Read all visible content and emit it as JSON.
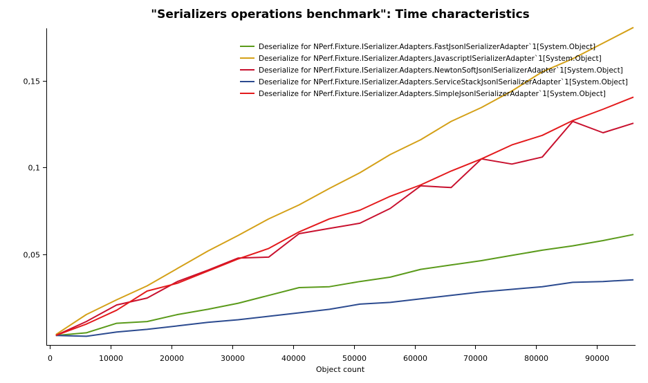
{
  "chart_data": {
    "type": "line",
    "title": "\"Serializers operations benchmark\": Time characteristics",
    "xlabel": "Object count",
    "ylabel": "",
    "xlim": [
      0,
      96000
    ],
    "ylim": [
      0,
      0.18
    ],
    "x_ticks": [
      0,
      10000,
      20000,
      30000,
      40000,
      50000,
      60000,
      70000,
      80000,
      90000
    ],
    "x_tick_labels": [
      "0",
      "10000",
      "20000",
      "30000",
      "40000",
      "50000",
      "60000",
      "70000",
      "80000",
      "90000"
    ],
    "y_ticks": [
      0.05,
      0.1,
      0.15
    ],
    "y_tick_labels": [
      "0,05",
      "0,1",
      "0,15"
    ],
    "x": [
      1000,
      6000,
      11000,
      16000,
      21000,
      26000,
      31000,
      36000,
      41000,
      46000,
      51000,
      56000,
      61000,
      66000,
      71000,
      76000,
      81000,
      86000,
      91000,
      96000
    ],
    "legend_position": "top-right",
    "series": [
      {
        "name": "Deserialize for NPerf.Fixture.ISerializer.Adapters.FastJsonISerializerAdapter`1[System.Object]",
        "color": "#5a9a1a",
        "values": [
          0.0035,
          0.005,
          0.0105,
          0.0115,
          0.0155,
          0.0185,
          0.022,
          0.0265,
          0.031,
          0.0315,
          0.0345,
          0.037,
          0.0415,
          0.044,
          0.0465,
          0.0495,
          0.0525,
          0.055,
          0.058,
          0.0615
        ]
      },
      {
        "name": "Deserialize for NPerf.Fixture.ISerializer.Adapters.JavascriptISerializerAdapter`1[System.Object]",
        "color": "#d4a017",
        "values": [
          0.004,
          0.0155,
          0.024,
          0.032,
          0.042,
          0.052,
          0.061,
          0.0705,
          0.0785,
          0.088,
          0.097,
          0.1075,
          0.116,
          0.1265,
          0.1345,
          0.144,
          0.155,
          0.1625,
          0.1715,
          0.1805
        ]
      },
      {
        "name": "Deserialize for NPerf.Fixture.ISerializer.Adapters.NewtonSoftJsonISerializerAdapter`1[System.Object]",
        "color": "#c8102e",
        "values": [
          0.0035,
          0.0115,
          0.021,
          0.025,
          0.0345,
          0.041,
          0.048,
          0.0485,
          0.062,
          0.065,
          0.068,
          0.0765,
          0.0895,
          0.0885,
          0.105,
          0.102,
          0.106,
          0.1265,
          0.12,
          0.1255
        ]
      },
      {
        "name": "Deserialize for NPerf.Fixture.ISerializer.Adapters.ServiceStackJsonISerializerAdapter`1[System.Object]",
        "color": "#2b4a8f",
        "values": [
          0.0035,
          0.003,
          0.0055,
          0.007,
          0.009,
          0.011,
          0.0125,
          0.0145,
          0.0165,
          0.0185,
          0.0215,
          0.0225,
          0.0245,
          0.0265,
          0.0285,
          0.03,
          0.0315,
          0.034,
          0.0345,
          0.0355
        ]
      },
      {
        "name": "Deserialize for NPerf.Fixture.ISerializer.Adapters.SimpleJsonISerializerAdapter`1[System.Object]",
        "color": "#e31a1c",
        "values": [
          0.0035,
          0.01,
          0.018,
          0.029,
          0.0335,
          0.0405,
          0.0475,
          0.0535,
          0.063,
          0.0705,
          0.0755,
          0.0835,
          0.09,
          0.098,
          0.105,
          0.113,
          0.1185,
          0.127,
          0.1335,
          0.1405
        ]
      }
    ]
  }
}
